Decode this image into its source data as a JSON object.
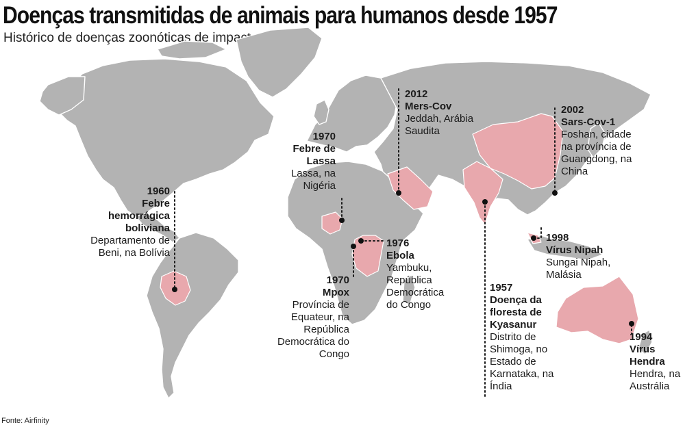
{
  "header": {
    "title": "Doenças transmitidas de animais para humanos desde 1957",
    "subtitle": "Histórico de doenças zoonóticas de impacto global"
  },
  "footer": {
    "source": "Fonte: Airfinity"
  },
  "colors": {
    "land": "#b3b3b3",
    "highlight": "#e8a8ad",
    "ocean": "#ffffff",
    "marker": "#111111"
  },
  "events": [
    {
      "id": "boliviana",
      "year": "1960",
      "disease": "Febre hemorrágica boliviana",
      "place": "Departamento de Beni, na Bolívia",
      "country": "Bolívia"
    },
    {
      "id": "lassa",
      "year": "1970",
      "disease": "Febre de Lassa",
      "place": "Lassa, na Nigéria",
      "country": "Nigéria"
    },
    {
      "id": "mpox",
      "year": "1970",
      "disease": "Mpox",
      "place": "Província de Equateur, na República Democrática do Congo",
      "country": "República Democrática do Congo"
    },
    {
      "id": "ebola",
      "year": "1976",
      "disease": "Ebola",
      "place": "Yambuku, República Democrática do Congo",
      "country": "República Democrática do Congo"
    },
    {
      "id": "mers",
      "year": "2012",
      "disease": "Mers-Cov",
      "place": "Jeddah, Arábia Saudita",
      "country": "Arábia Saudita"
    },
    {
      "id": "sars",
      "year": "2002",
      "disease": "Sars-Cov-1",
      "place": "Foshan, cidade na província de Guangdong, na China",
      "country": "China"
    },
    {
      "id": "kyasanur",
      "year": "1957",
      "disease": "Doença da floresta de Kyasanur",
      "place": "Distrito de Shimoga, no Estado de Karnataka, na Índia",
      "country": "Índia"
    },
    {
      "id": "nipah",
      "year": "1998",
      "disease": "Vírus Nipah",
      "place": "Sungai Nipah, Malásia",
      "country": "Malásia"
    },
    {
      "id": "hendra",
      "year": "1994",
      "disease": "Vírus Hendra",
      "place": "Hendra, na Austrália",
      "country": "Austrália"
    }
  ]
}
